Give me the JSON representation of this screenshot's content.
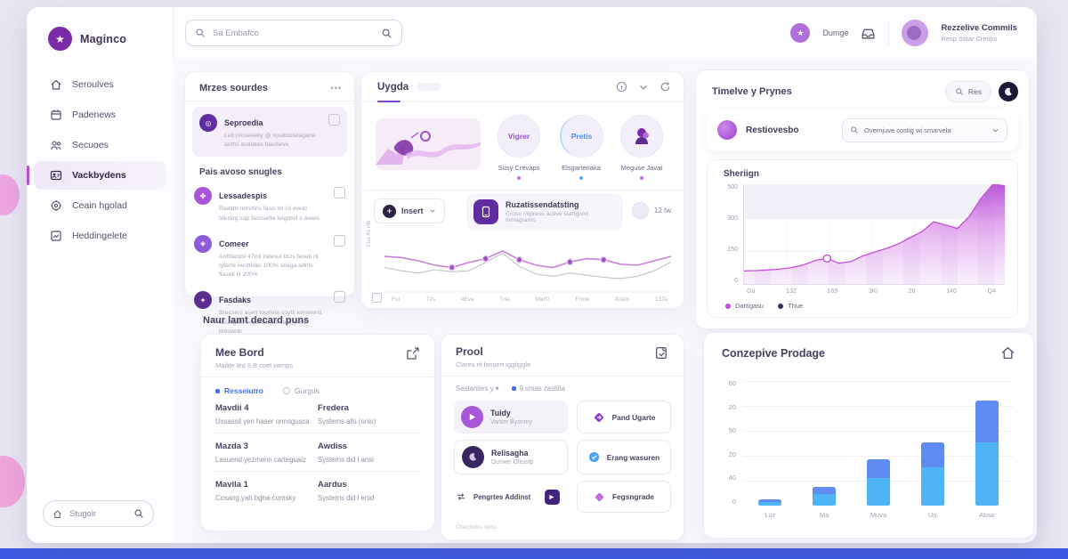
{
  "colors": {
    "accent_purple": "#8b31b5",
    "accent_magenta": "#c24fd8",
    "accent_blue": "#4a90f0",
    "bar_bottom": "#4fb4f5",
    "bar_top": "#5f8cf2",
    "taskbar": "#3f5be4"
  },
  "sidebar": {
    "logo": "Maginco",
    "items": [
      {
        "label": "Seroulves"
      },
      {
        "label": "Padenews"
      },
      {
        "label": "Secuoes"
      },
      {
        "label": "Vackbydens"
      },
      {
        "label": "Ceain hgolad"
      },
      {
        "label": "Heddingelete"
      }
    ],
    "search_label": "Stugolr"
  },
  "topbar": {
    "search_placeholder": "Sa Embafco",
    "badge_label": "Dumge",
    "user_name": "Rezzelive Commils",
    "user_role": "Resp Stitar Cretins"
  },
  "section_label": "Naur lamt decard puns",
  "cards": {
    "sources": {
      "title": "Mrzes sourdes",
      "menu_label": "•••",
      "featured": {
        "title": "Seproedia",
        "desc": "Leit prosevetiy @ njsebddelagane ariths avalates blastieve"
      },
      "section": "Pais avoso snugles",
      "items": [
        {
          "title": "Lessadespis",
          "desc": "Rawrtb retrotins fasci tis cil oveld tderorg sap fascsetta teightsil s awels"
        },
        {
          "title": "Comeer",
          "desc": "Anttfaodsl 47rol zalasur brzs faseh rit tyterte recittisas 100% seaga adrits flaseti lit 200%"
        },
        {
          "title": "Fasdaks",
          "desc": "Brecsers aserj tourtela coytti kerrewnd sto2rgattr vojtehutt jits van()yd51 breswoh"
        }
      ]
    },
    "uygda": {
      "title": "Uygda",
      "stats": [
        {
          "value": "Vigrer",
          "label": "Susy Crevaps",
          "dot": "#b06fd8"
        },
        {
          "value": "Pretis",
          "label": "Elsgarteriaka",
          "dot": "#56a8f0"
        },
        {
          "value": "",
          "label": "Meguse Javat",
          "dot": "#b06fd8"
        }
      ],
      "insert_label": "Insert",
      "info_title": "Ruzatissendatsting",
      "info_desc": "Crosu impress active startgoint inmagrams",
      "time_label": "12 tw",
      "chart": {
        "type": "line",
        "y_side_label": "Eba 45 r4b",
        "x_labels": [
          "Fur",
          "72s",
          "4Eva",
          "Tda",
          "Marfz",
          "Frroe",
          "42am",
          "13Ta"
        ],
        "series": [
          {
            "name": "primary",
            "color": "#c87fd8",
            "values": [
              66,
              64,
              58,
              50,
              46,
              55,
              62,
              76,
              60,
              50,
              46,
              56,
              62,
              60,
              52,
              50,
              58,
              66
            ]
          },
          {
            "name": "secondary",
            "color": "#c2bfd0",
            "values": [
              46,
              40,
              36,
              42,
              38,
              40,
              55,
              72,
              48,
              34,
              30,
              36,
              32,
              28,
              26,
              30,
              40,
              56
            ]
          }
        ],
        "dot_series": 0,
        "dot_indexes": [
          4,
          6,
          8,
          11,
          13
        ],
        "dot_color": "#a050c8"
      }
    },
    "timeline": {
      "title": "Timelve y Prynes",
      "res_label": "Res",
      "row_label": "Restiovesbo",
      "select_label": "Overnjuve costig wi smarvela",
      "chart": {
        "type": "area",
        "title": "Sheriign",
        "y_labels": [
          "500",
          "300",
          "150",
          "0"
        ],
        "x_labels": [
          "Gu",
          "132",
          "169",
          "3Ki",
          "20",
          "140",
          "Q4"
        ],
        "ylim": [
          0,
          500
        ],
        "values": [
          65,
          67,
          70,
          74,
          82,
          95,
          118,
          128,
          104,
          112,
          140,
          160,
          178,
          200,
          232,
          262,
          312,
          296,
          278,
          338,
          430,
          500,
          492
        ],
        "marker_index": 7,
        "legend": [
          {
            "label": "Dartigasu",
            "color": "#c24fd8"
          },
          {
            "label": "Thue",
            "color": "#3a2f55"
          }
        ]
      }
    },
    "mee_bord": {
      "title": "Mee Bord",
      "subtitle": "Mailite led 6 B coel vamps",
      "tabs": [
        {
          "label": "Resseiutro"
        },
        {
          "label": "Gurgus"
        }
      ],
      "rows": [
        {
          "lt": "Mavdii 4",
          "ld": "Ussassil yen haser ormsgusca",
          "rt": "Fredera",
          "rd": "Systems alls (onis)"
        },
        {
          "lt": "Mazda 3",
          "ld": "Lasuend yezmenn carteguaiz",
          "rt": "Awdiss",
          "rd": "Systems did l ansi"
        },
        {
          "lt": "Mavila 1",
          "ld": "Cosang yah bgna-comsky",
          "rt": "Aardus",
          "rd": "Systems did l enid"
        }
      ]
    },
    "prool": {
      "title": "Prool",
      "subtitle": "Clares el lansert iggtiggle",
      "filter_a": "Sestanites y",
      "filter_b": "9 smas zastilla",
      "tiles": [
        {
          "title": "Tuidy",
          "desc": "Vanter Bysnmy"
        },
        {
          "label": "Pand Ugarte"
        },
        {
          "title": "Relisagha",
          "desc": "Durwer Olisistp"
        },
        {
          "label": "Erang wasuren"
        },
        {
          "label": "Pengrtes Addinst"
        },
        {
          "label": "Fegsngrade"
        }
      ],
      "footer": "Chectotss tetss"
    },
    "prodage": {
      "title": "Conzepive Prodage",
      "chart": {
        "type": "bar",
        "categories": [
          "Luz",
          "Ma",
          "Muva",
          "Un",
          "Absa"
        ],
        "values": [
          3,
          9,
          22,
          30,
          50
        ],
        "ylim": [
          0,
          60
        ],
        "y_labels": [
          "60",
          "20",
          "50",
          "20",
          "40",
          "0"
        ],
        "split": 0.6
      }
    }
  }
}
